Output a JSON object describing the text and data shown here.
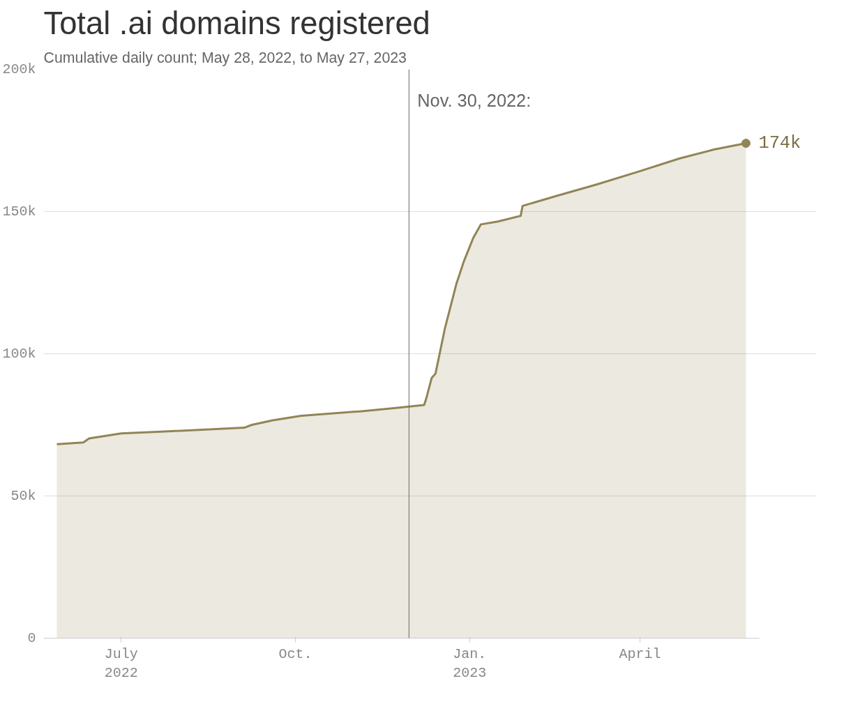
{
  "chart_data": {
    "type": "area",
    "title": "Total .ai domains registered",
    "subtitle": "Cumulative daily count; May 28, 2022, to May 27, 2023",
    "x": [
      "2022-05-28",
      "2022-06-11",
      "2022-06-14",
      "2022-07-01",
      "2022-07-22",
      "2022-09-04",
      "2022-09-08",
      "2022-09-19",
      "2022-10-04",
      "2022-11-05",
      "2022-11-24",
      "2022-12-08",
      "2022-12-09",
      "2022-12-12",
      "2022-12-14",
      "2022-12-19",
      "2022-12-25",
      "2022-12-29",
      "2023-01-03",
      "2023-01-07",
      "2023-01-16",
      "2023-01-28",
      "2023-01-29",
      "2023-02-16",
      "2023-03-09",
      "2023-03-31",
      "2023-04-22",
      "2023-05-10",
      "2023-05-27"
    ],
    "series": [
      {
        "color": "#918555",
        "values": [
          68200,
          68800,
          70200,
          72000,
          72600,
          74000,
          75000,
          76600,
          78200,
          79800,
          81000,
          82000,
          84000,
          91500,
          93000,
          109000,
          124500,
          132500,
          140800,
          145500,
          146500,
          148500,
          152000,
          155500,
          159500,
          164000,
          168700,
          171800,
          174000
        ],
        "value_labels": [
          null,
          null,
          null,
          null,
          null,
          null,
          null,
          null,
          null,
          null,
          null,
          null,
          null,
          null,
          null,
          null,
          null,
          null,
          null,
          null,
          null,
          null,
          null,
          null,
          null,
          null,
          null,
          null,
          "174k"
        ]
      }
    ],
    "xlim": [
      "2022-05-21",
      "2023-06-03"
    ],
    "xticks": [
      {
        "value": "2022-07-01",
        "label": "July\n2022"
      },
      {
        "value": "2022-10-01",
        "label": "Oct."
      },
      {
        "value": "2023-01-01",
        "label": "Jan.\n2023"
      },
      {
        "value": "2023-04-01",
        "label": "April"
      }
    ],
    "ylim": [
      0,
      200000
    ],
    "yticks": [
      {
        "value": 0,
        "label": "0"
      },
      {
        "value": 50000,
        "label": "50k"
      },
      {
        "value": 100000,
        "label": "100k"
      },
      {
        "value": 150000,
        "label": "150k"
      },
      {
        "value": 200000,
        "label": "200k"
      }
    ],
    "grid": "y",
    "ref_lines": [
      {
        "axis": "x",
        "value": "2022-11-30",
        "label": "Nov. 30, 2022:",
        "color": "#666666"
      }
    ]
  }
}
